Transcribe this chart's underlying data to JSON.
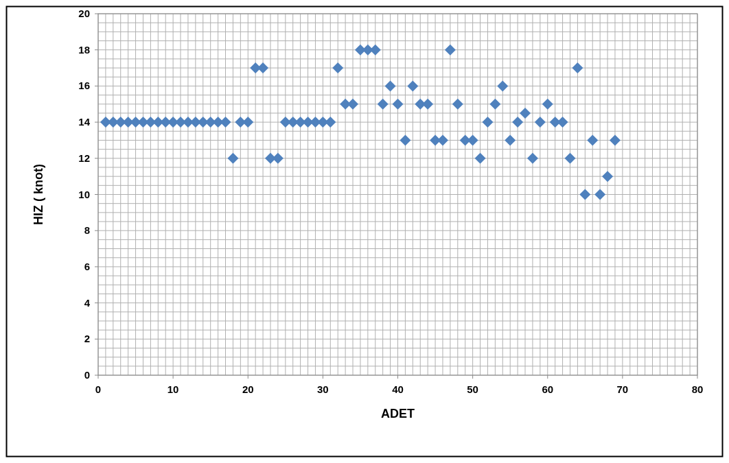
{
  "chart_data": {
    "type": "scatter",
    "xlabel": "ADET",
    "ylabel": "HIZ ( knot)",
    "marker": "diamond",
    "grid": true,
    "x": [
      1,
      2,
      3,
      4,
      5,
      6,
      7,
      8,
      9,
      10,
      11,
      12,
      13,
      14,
      15,
      16,
      17,
      18,
      19,
      20,
      21,
      22,
      23,
      24,
      25,
      26,
      27,
      28,
      29,
      30,
      31,
      32,
      33,
      34,
      35,
      36,
      37,
      38,
      39,
      40,
      41,
      42,
      43,
      44,
      45,
      46,
      47,
      48,
      49,
      50,
      51,
      52,
      53,
      54,
      55,
      56,
      57,
      58,
      59,
      60,
      61,
      62,
      63,
      64,
      65,
      66,
      67,
      68,
      69
    ],
    "series": [
      {
        "color": "#4f81bd",
        "values": [
          14,
          14,
          14,
          14,
          14,
          14,
          14,
          14,
          14,
          14,
          14,
          14,
          14,
          14,
          14,
          14,
          14,
          12,
          14,
          14,
          17,
          17,
          12,
          12,
          14,
          14,
          14,
          14,
          14,
          14,
          14,
          17,
          15,
          15,
          18,
          18,
          18,
          15,
          16,
          15,
          13,
          16,
          15,
          15,
          13,
          13,
          18,
          15,
          13,
          13,
          12,
          14,
          15,
          16,
          13,
          14,
          14.5,
          12,
          14,
          15,
          14,
          14,
          12,
          17,
          10,
          13,
          10,
          11,
          13
        ]
      }
    ],
    "xlim": [
      0,
      80
    ],
    "xticks": [
      0,
      {
        "value": 1,
        "label": null
      },
      {
        "value": 2,
        "label": null
      },
      {
        "value": 3,
        "label": null
      },
      {
        "value": 4,
        "label": null
      },
      {
        "value": 5,
        "label": null
      },
      {
        "value": 6,
        "label": null
      },
      {
        "value": 7,
        "label": null
      },
      {
        "value": 8,
        "label": null
      },
      {
        "value": 9,
        "label": null
      },
      10,
      {
        "value": 11,
        "label": null
      },
      {
        "value": 12,
        "label": null
      },
      {
        "value": 13,
        "label": null
      },
      {
        "value": 14,
        "label": null
      },
      {
        "value": 15,
        "label": null
      },
      {
        "value": 16,
        "label": null
      },
      {
        "value": 17,
        "label": null
      },
      {
        "value": 18,
        "label": null
      },
      {
        "value": 19,
        "label": null
      },
      20,
      {
        "value": 21,
        "label": null
      },
      {
        "value": 22,
        "label": null
      },
      {
        "value": 23,
        "label": null
      },
      {
        "value": 24,
        "label": null
      },
      {
        "value": 25,
        "label": null
      },
      {
        "value": 26,
        "label": null
      },
      {
        "value": 27,
        "label": null
      },
      {
        "value": 28,
        "label": null
      },
      {
        "value": 29,
        "label": null
      },
      30,
      {
        "value": 31,
        "label": null
      },
      {
        "value": 32,
        "label": null
      },
      {
        "value": 33,
        "label": null
      },
      {
        "value": 34,
        "label": null
      },
      {
        "value": 35,
        "label": null
      },
      {
        "value": 36,
        "label": null
      },
      {
        "value": 37,
        "label": null
      },
      {
        "value": 38,
        "label": null
      },
      {
        "value": 39,
        "label": null
      },
      40,
      {
        "value": 41,
        "label": null
      },
      {
        "value": 42,
        "label": null
      },
      {
        "value": 43,
        "label": null
      },
      {
        "value": 44,
        "label": null
      },
      {
        "value": 45,
        "label": null
      },
      {
        "value": 46,
        "label": null
      },
      {
        "value": 47,
        "label": null
      },
      {
        "value": 48,
        "label": null
      },
      {
        "value": 49,
        "label": null
      },
      50,
      {
        "value": 51,
        "label": null
      },
      {
        "value": 52,
        "label": null
      },
      {
        "value": 53,
        "label": null
      },
      {
        "value": 54,
        "label": null
      },
      {
        "value": 55,
        "label": null
      },
      {
        "value": 56,
        "label": null
      },
      {
        "value": 57,
        "label": null
      },
      {
        "value": 58,
        "label": null
      },
      {
        "value": 59,
        "label": null
      },
      60,
      {
        "value": 61,
        "label": null
      },
      {
        "value": 62,
        "label": null
      },
      {
        "value": 63,
        "label": null
      },
      {
        "value": 64,
        "label": null
      },
      {
        "value": 65,
        "label": null
      },
      {
        "value": 66,
        "label": null
      },
      {
        "value": 67,
        "label": null
      },
      {
        "value": 68,
        "label": null
      },
      {
        "value": 69,
        "label": null
      },
      70,
      {
        "value": 71,
        "label": null
      },
      {
        "value": 72,
        "label": null
      },
      {
        "value": 73,
        "label": null
      },
      {
        "value": 74,
        "label": null
      },
      {
        "value": 75,
        "label": null
      },
      {
        "value": 76,
        "label": null
      },
      {
        "value": 77,
        "label": null
      },
      {
        "value": 78,
        "label": null
      },
      {
        "value": 79,
        "label": null
      },
      80
    ],
    "ylim": [
      0,
      20
    ],
    "yticks": [
      0,
      {
        "value": 0.5,
        "label": null
      },
      {
        "value": 1,
        "label": null
      },
      {
        "value": 1.5,
        "label": null
      },
      2,
      {
        "value": 2.5,
        "label": null
      },
      {
        "value": 3,
        "label": null
      },
      {
        "value": 3.5,
        "label": null
      },
      4,
      {
        "value": 4.5,
        "label": null
      },
      {
        "value": 5,
        "label": null
      },
      {
        "value": 5.5,
        "label": null
      },
      6,
      {
        "value": 6.5,
        "label": null
      },
      {
        "value": 7,
        "label": null
      },
      {
        "value": 7.5,
        "label": null
      },
      8,
      {
        "value": 8.5,
        "label": null
      },
      {
        "value": 9,
        "label": null
      },
      {
        "value": 9.5,
        "label": null
      },
      10,
      {
        "value": 10.5,
        "label": null
      },
      {
        "value": 11,
        "label": null
      },
      {
        "value": 11.5,
        "label": null
      },
      12,
      {
        "value": 12.5,
        "label": null
      },
      {
        "value": 13,
        "label": null
      },
      {
        "value": 13.5,
        "label": null
      },
      14,
      {
        "value": 14.5,
        "label": null
      },
      {
        "value": 15,
        "label": null
      },
      {
        "value": 15.5,
        "label": null
      },
      16,
      {
        "value": 16.5,
        "label": null
      },
      {
        "value": 17,
        "label": null
      },
      {
        "value": 17.5,
        "label": null
      },
      18,
      {
        "value": 18.5,
        "label": null
      },
      {
        "value": 19,
        "label": null
      },
      {
        "value": 19.5,
        "label": null
      },
      20
    ]
  }
}
